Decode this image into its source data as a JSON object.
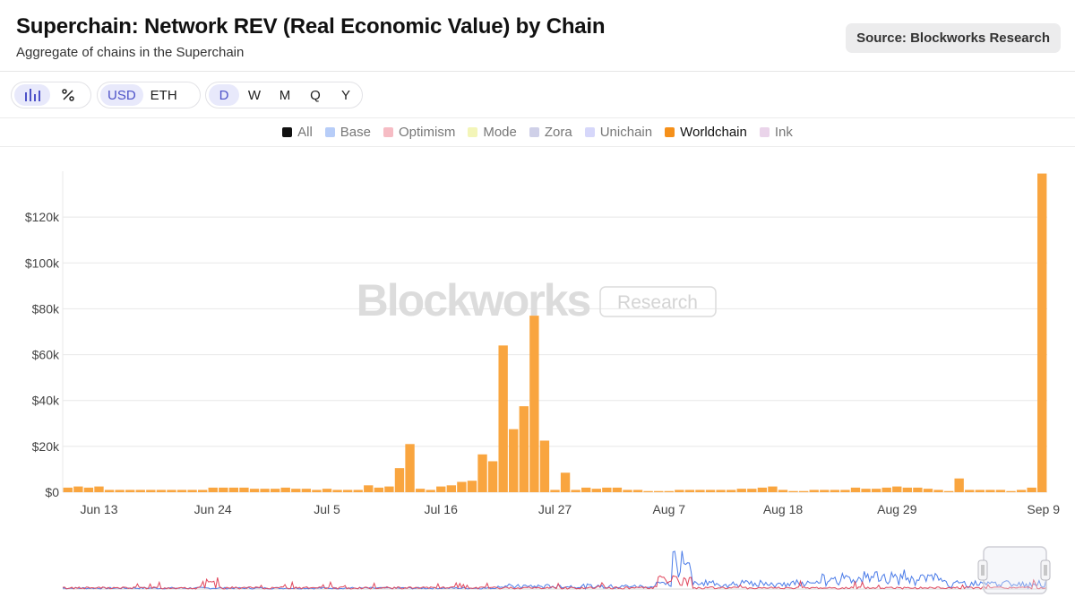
{
  "header": {
    "title": "Superchain: Network REV (Real Economic Value) by Chain",
    "subtitle": "Aggregate of chains in the Superchain",
    "source": "Source: Blockworks Research"
  },
  "toolbar": {
    "chart_type_icons": [
      "bar-chart-icon",
      "percent-icon"
    ],
    "currency_options": [
      "USD",
      "ETH"
    ],
    "currency_selected": "USD",
    "period_options": [
      "D",
      "W",
      "M",
      "Q",
      "Y"
    ],
    "period_selected": "D"
  },
  "legend": [
    {
      "label": "All",
      "color": "#111111",
      "active": false
    },
    {
      "label": "Base",
      "color": "#b7cdf8",
      "active": false
    },
    {
      "label": "Optimism",
      "color": "#f6bcc4",
      "active": false
    },
    {
      "label": "Mode",
      "color": "#f3f5b8",
      "active": false
    },
    {
      "label": "Zora",
      "color": "#cfd0e8",
      "active": false
    },
    {
      "label": "Unichain",
      "color": "#d6d7fa",
      "active": false
    },
    {
      "label": "Worldchain",
      "color": "#f5901a",
      "active": true
    },
    {
      "label": "Ink",
      "color": "#ead4ea",
      "active": false
    }
  ],
  "watermark": {
    "brand": "Blockworks",
    "badge": "Research"
  },
  "colors": {
    "bar": "#f9a53f",
    "grid": "#e8e8e8",
    "axis_text": "#444444"
  },
  "chart_data": {
    "type": "bar",
    "series": [
      {
        "name": "Worldchain",
        "values": [
          2000,
          2500,
          2000,
          2500,
          1000,
          1000,
          1000,
          1000,
          1000,
          1000,
          1000,
          1000,
          1000,
          1000,
          2000,
          2000,
          2000,
          2000,
          1500,
          1500,
          1500,
          2000,
          1500,
          1500,
          1000,
          1500,
          1000,
          1000,
          1000,
          3000,
          2000,
          2500,
          10500,
          21000,
          1500,
          1000,
          2500,
          3000,
          4500,
          5000,
          16500,
          13500,
          64000,
          27500,
          37500,
          77000,
          22500,
          1000,
          8500,
          1000,
          2000,
          1500,
          2000,
          2000,
          1000,
          1000,
          500,
          500,
          500,
          1000,
          1000,
          1000,
          1000,
          1000,
          1000,
          1500,
          1500,
          2000,
          2500,
          1000,
          500,
          500,
          1000,
          1000,
          1000,
          1000,
          2000,
          1500,
          1500,
          2000,
          2500,
          2000,
          2000,
          1500,
          1000,
          500,
          6000,
          1000,
          1000,
          1000,
          1000,
          500,
          1000,
          2000,
          139000
        ]
      }
    ],
    "x_labels": [
      "Jun 13",
      "Jun 24",
      "Jul 5",
      "Jul 16",
      "Jul 27",
      "Aug 7",
      "Aug 18",
      "Aug 29",
      "Sep 9"
    ],
    "y_ticks": [
      "$0",
      "$20k",
      "$40k",
      "$60k",
      "$80k",
      "$100k",
      "$120k"
    ],
    "ylim": [
      0,
      140000
    ],
    "grid": true,
    "legend_position": "top-center",
    "x_domain": [
      "Jun 13",
      "Sep 9"
    ],
    "navigator": {
      "lines": [
        {
          "name": "Base",
          "color": "#4a7be8"
        },
        {
          "name": "Optimism",
          "color": "#e0455b"
        }
      ]
    }
  }
}
